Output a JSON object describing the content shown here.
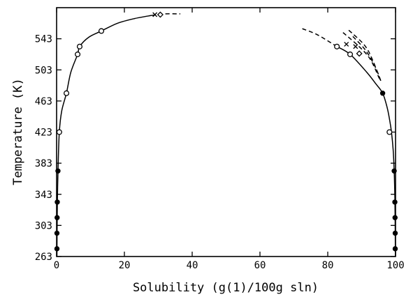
{
  "chart_data": {
    "type": "scatter",
    "title": "",
    "xlabel": "Solubility (g(1)/100g sln)",
    "ylabel": "Temperature (K)",
    "xlim": [
      0,
      100
    ],
    "ylim": [
      263,
      583
    ],
    "x_ticks": [
      0,
      20,
      40,
      60,
      80,
      100
    ],
    "y_ticks": [
      263,
      303,
      343,
      383,
      423,
      463,
      503,
      543
    ],
    "grid": false,
    "legend": "none",
    "series": [
      {
        "marker": "open-circle",
        "points": [
          [
            0.8,
            423
          ],
          [
            2.9,
            473
          ],
          [
            6.2,
            523
          ],
          [
            6.8,
            533
          ],
          [
            13.2,
            553
          ],
          [
            82.7,
            533
          ],
          [
            86.6,
            523
          ],
          [
            98.2,
            423
          ]
        ]
      },
      {
        "marker": "filled-circle",
        "points": [
          [
            0.1,
            273
          ],
          [
            0.1,
            293
          ],
          [
            0.15,
            313
          ],
          [
            0.2,
            333
          ],
          [
            0.4,
            373
          ],
          [
            96.2,
            473
          ],
          [
            99.6,
            373
          ],
          [
            99.8,
            333
          ],
          [
            99.85,
            313
          ],
          [
            99.9,
            293
          ],
          [
            99.9,
            273
          ]
        ]
      },
      {
        "marker": "x",
        "points": [
          [
            29.0,
            574
          ],
          [
            85.5,
            536
          ],
          [
            88.2,
            533
          ]
        ]
      },
      {
        "marker": "diamond",
        "points": [
          [
            30.6,
            574
          ],
          [
            89.3,
            524
          ]
        ]
      },
      {
        "style": "solid-curve",
        "points": [
          [
            0.1,
            263
          ],
          [
            0.15,
            300
          ],
          [
            0.25,
            340
          ],
          [
            0.45,
            380
          ],
          [
            0.8,
            423
          ],
          [
            1.5,
            450
          ],
          [
            2.9,
            473
          ],
          [
            4.2,
            500
          ],
          [
            6.2,
            523
          ],
          [
            6.8,
            533
          ],
          [
            9.5,
            545
          ],
          [
            13.2,
            553
          ],
          [
            18,
            563
          ],
          [
            23,
            569
          ],
          [
            28,
            573
          ]
        ]
      },
      {
        "style": "solid-curve",
        "points": [
          [
            82.7,
            533
          ],
          [
            86.6,
            523
          ],
          [
            91.5,
            500
          ],
          [
            94.2,
            485
          ],
          [
            96.2,
            473
          ],
          [
            97.5,
            455
          ],
          [
            98.2,
            440
          ],
          [
            98.8,
            423
          ],
          [
            99.3,
            400
          ],
          [
            99.6,
            373
          ],
          [
            99.8,
            340
          ],
          [
            99.9,
            300
          ],
          [
            99.95,
            263
          ]
        ]
      },
      {
        "style": "dashed-curve",
        "points": [
          [
            28,
            573
          ],
          [
            32,
            575
          ],
          [
            36.5,
            575
          ]
        ]
      },
      {
        "style": "dashed-curve",
        "points": [
          [
            72.5,
            556
          ],
          [
            77,
            548
          ],
          [
            82.7,
            533
          ]
        ]
      },
      {
        "style": "dashed-curve",
        "points": [
          [
            84.5,
            551
          ],
          [
            89,
            534
          ],
          [
            92.5,
            517
          ],
          [
            95.2,
            492
          ]
        ]
      },
      {
        "style": "dashed-curve",
        "points": [
          [
            86.2,
            554
          ],
          [
            90.8,
            535
          ],
          [
            93.2,
            516
          ],
          [
            95.5,
            490
          ]
        ]
      },
      {
        "style": "dashed-curve",
        "points": [
          [
            87.4,
            546
          ],
          [
            91.2,
            528
          ],
          [
            94.2,
            505
          ],
          [
            95.8,
            487
          ]
        ]
      }
    ]
  }
}
